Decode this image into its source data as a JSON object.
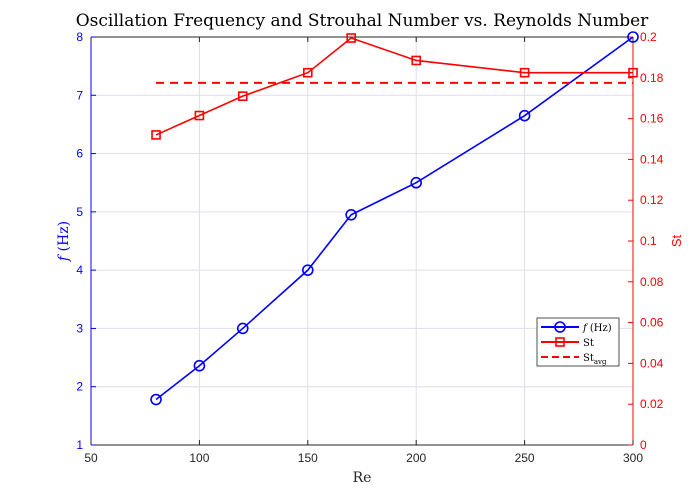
{
  "chart_data": {
    "type": "line",
    "title": "Oscillation Frequency and Strouhal Number vs. Reynolds Number",
    "xlabel": "Re",
    "ylabel_left": "f (Hz)",
    "ylabel_right": "St",
    "xlim": [
      50,
      300
    ],
    "ylim_left": [
      1,
      8
    ],
    "ylim_right": [
      0,
      0.2
    ],
    "xticks": [
      50,
      100,
      150,
      200,
      250,
      300
    ],
    "yticks_left": [
      1,
      2,
      3,
      4,
      5,
      6,
      7,
      8
    ],
    "yticks_right": [
      "0",
      "0.02",
      "0.04",
      "0.06",
      "0.08",
      "0.1",
      "0.12",
      "0.14",
      "0.16",
      "0.18",
      "0.2"
    ],
    "grid": true,
    "legend_position": "right",
    "x": [
      80,
      100,
      120,
      150,
      170,
      200,
      250,
      300
    ],
    "series": [
      {
        "name": "f (Hz)",
        "axis": "left",
        "color": "#0000ff",
        "marker": "circle",
        "values": [
          1.78,
          2.36,
          3.0,
          4.0,
          4.95,
          5.5,
          6.65,
          8.0
        ]
      },
      {
        "name": "St",
        "axis": "right",
        "color": "#ff0000",
        "marker": "square",
        "values": [
          0.152,
          0.1615,
          0.171,
          0.1825,
          0.1995,
          0.1885,
          0.1825,
          0.1825
        ]
      },
      {
        "name": "St_avg",
        "axis": "right",
        "color": "#ff0000",
        "style": "dashed",
        "x_range": [
          80,
          300
        ],
        "value": 0.1775
      }
    ],
    "legend": [
      {
        "label": "f (Hz)"
      },
      {
        "label": "St"
      },
      {
        "label": "St",
        "sub": "avg"
      }
    ]
  }
}
